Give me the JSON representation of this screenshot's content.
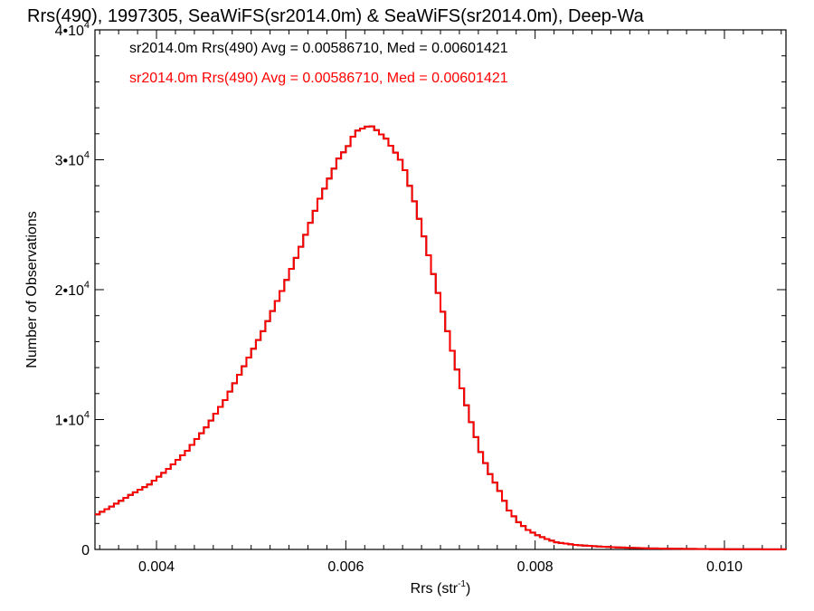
{
  "chart_data": {
    "type": "line",
    "title": "Rrs(490), 1997305, SeaWiFS(sr2014.0m) & SeaWiFS(sr2014.0m), Deep-Wa",
    "xlabel": "Rrs (str",
    "xlabel_sup": "-1",
    "xlabel_end": ")",
    "ylabel": "Number of Observations",
    "xlim": [
      0.00335,
      0.01065
    ],
    "ylim": [
      0,
      40000
    ],
    "x_ticks": [
      {
        "value": 0.004,
        "label": "0.004"
      },
      {
        "value": 0.006,
        "label": "0.006"
      },
      {
        "value": 0.008,
        "label": "0.008"
      },
      {
        "value": 0.01,
        "label": "0.010"
      }
    ],
    "y_ticks": [
      {
        "value": 0,
        "base": "0",
        "exp": ""
      },
      {
        "value": 10000,
        "base": "1•10",
        "exp": "4"
      },
      {
        "value": 20000,
        "base": "2•10",
        "exp": "4"
      },
      {
        "value": 30000,
        "base": "3•10",
        "exp": "4"
      },
      {
        "value": 40000,
        "base": "4•10",
        "exp": "4"
      }
    ],
    "grid": false,
    "legend_position": "top-left",
    "series": [
      {
        "name": "sr2014.0m Rrs(490) Avg = 0.00586710, Med = 0.00601421",
        "color": "#000000",
        "x": [
          0.00335,
          0.0035,
          0.0037,
          0.0039,
          0.0041,
          0.0043,
          0.0045,
          0.0047,
          0.0049,
          0.0051,
          0.0053,
          0.0055,
          0.0057,
          0.0059,
          0.0061,
          0.0062,
          0.00625,
          0.0063,
          0.0064,
          0.0065,
          0.0066,
          0.0067,
          0.0068,
          0.0069,
          0.007,
          0.0071,
          0.0072,
          0.0073,
          0.0074,
          0.0075,
          0.0076,
          0.0077,
          0.0078,
          0.0079,
          0.008,
          0.0081,
          0.0082,
          0.0084,
          0.0086,
          0.0088,
          0.009,
          0.0092,
          0.0095,
          0.01,
          0.0105,
          0.01065
        ],
        "y": [
          2700,
          3300,
          4200,
          5000,
          6200,
          7600,
          9400,
          11500,
          14100,
          16800,
          19900,
          23300,
          27000,
          30100,
          32000,
          32400,
          32500,
          32300,
          31800,
          30800,
          29200,
          26800,
          24100,
          21200,
          18300,
          15300,
          12400,
          9800,
          7500,
          5800,
          4500,
          3000,
          2100,
          1500,
          1100,
          800,
          550,
          350,
          250,
          170,
          120,
          80,
          50,
          20,
          10,
          5
        ]
      },
      {
        "name": "sr2014.0m Rrs(490) Avg = 0.00586710, Med = 0.00601421",
        "color": "#ff0000",
        "x": [
          0.00335,
          0.0035,
          0.0037,
          0.0039,
          0.0041,
          0.0043,
          0.0045,
          0.0047,
          0.0049,
          0.0051,
          0.0053,
          0.0055,
          0.0057,
          0.0059,
          0.0061,
          0.0062,
          0.00625,
          0.0063,
          0.0064,
          0.0065,
          0.0066,
          0.0067,
          0.0068,
          0.0069,
          0.007,
          0.0071,
          0.0072,
          0.0073,
          0.0074,
          0.0075,
          0.0076,
          0.0077,
          0.0078,
          0.0079,
          0.008,
          0.0081,
          0.0082,
          0.0084,
          0.0086,
          0.0088,
          0.009,
          0.0092,
          0.0095,
          0.01,
          0.0105,
          0.01065
        ],
        "y": [
          2700,
          3300,
          4200,
          5000,
          6200,
          7600,
          9400,
          11500,
          14100,
          16800,
          19900,
          23300,
          27000,
          30100,
          32000,
          32400,
          32500,
          32300,
          31800,
          30800,
          29200,
          26800,
          24100,
          21200,
          18300,
          15300,
          12400,
          9800,
          7500,
          5800,
          4500,
          3000,
          2100,
          1500,
          1100,
          800,
          550,
          350,
          250,
          170,
          120,
          80,
          50,
          20,
          10,
          5
        ]
      }
    ]
  }
}
